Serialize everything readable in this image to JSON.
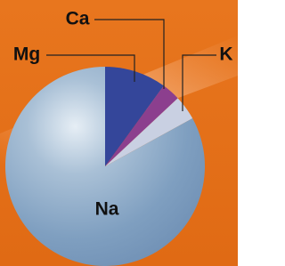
{
  "chart_data": {
    "type": "pie",
    "categories": [
      "Mg",
      "Ca",
      "K",
      "Na"
    ],
    "values": [
      10,
      3,
      4,
      83
    ],
    "colors": [
      "#34469a",
      "#8c3f8e",
      "#c9d0e2",
      "#8eaac6"
    ]
  }
}
